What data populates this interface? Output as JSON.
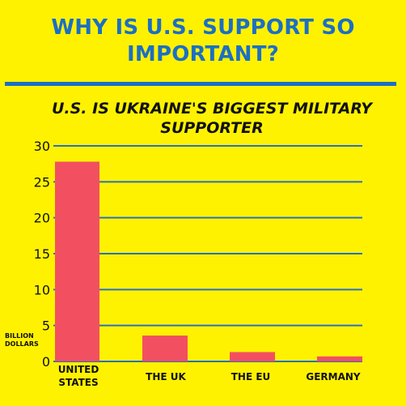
{
  "headline": {
    "line1": "WHY IS U.S. SUPPORT SO",
    "line2": "IMPORTANT?"
  },
  "colors": {
    "background": "#fff200",
    "headline": "#1c6fc4",
    "gridline": "#2a6fc0",
    "bar": "#f25060"
  },
  "chart_data": {
    "type": "bar",
    "title": "U.S. IS UKRAINE'S BIGGEST MILITARY SUPPORTER",
    "title_lines": [
      "U.S. IS UKRAINE'S BIGGEST MILITARY",
      "SUPPORTER"
    ],
    "categories": [
      "UNITED STATES",
      "THE UK",
      "THE EU",
      "GERMANY"
    ],
    "category_lines": [
      [
        "UNITED",
        "STATES"
      ],
      [
        "THE UK"
      ],
      [
        "THE EU"
      ],
      [
        "GERMANY"
      ]
    ],
    "values": [
      27.8,
      3.6,
      1.3,
      0.7
    ],
    "ylabel": "BILLION DOLLARS",
    "ylabel_lines": [
      "BILLION",
      "DOLLARS"
    ],
    "ylim": [
      0,
      30
    ],
    "yticks": [
      0,
      5,
      10,
      15,
      20,
      25,
      30
    ],
    "grid": true,
    "legend": "none"
  }
}
